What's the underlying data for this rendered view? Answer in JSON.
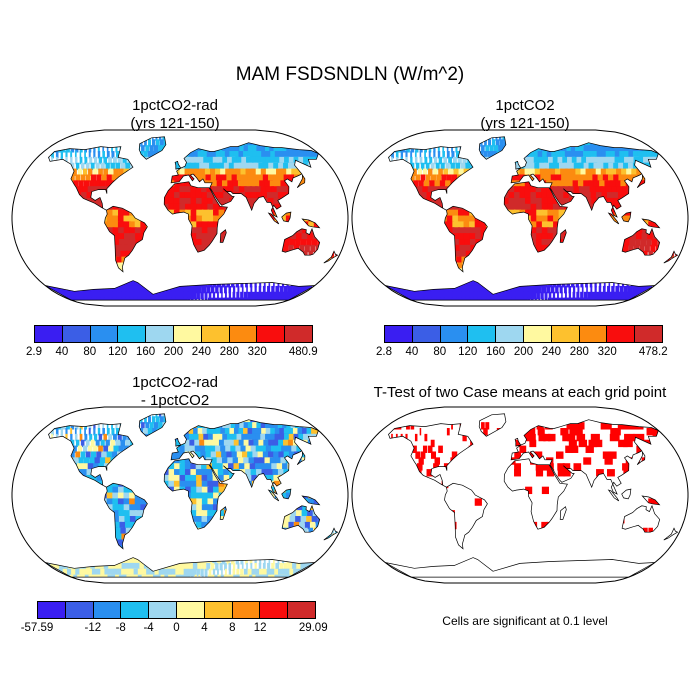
{
  "title": "MAM FSDSNDLN (W/m^2)",
  "panels": [
    {
      "title_line1": "1pctCO2-rad",
      "title_line2": "(yrs 121-150)"
    },
    {
      "title_line1": "1pctCO2",
      "title_line2": "(yrs 121-150)"
    },
    {
      "title_line1": "1pctCO2-rad",
      "title_line2": "- 1pctCO2"
    },
    {
      "title_line1": "T-Test of two Case means at each grid point",
      "title_line2": ""
    }
  ],
  "colorbars": {
    "abs_colors": [
      "#3a1ef2",
      "#3b5ee6",
      "#2a8ff0",
      "#1fbff0",
      "#9ed7f0",
      "#fff9a0",
      "#fdc12e",
      "#fc8b10",
      "#f90d0d",
      "#d02a2a"
    ],
    "cb1_labels": [
      "2.9",
      "40",
      "80",
      "120",
      "160",
      "200",
      "240",
      "280",
      "320",
      "480.9"
    ],
    "cb2_labels": [
      "2.8",
      "40",
      "80",
      "120",
      "160",
      "200",
      "240",
      "280",
      "320",
      "478.2"
    ],
    "diff_colors": [
      "#3a1ef2",
      "#3b5ee6",
      "#2a8ff0",
      "#1fbff0",
      "#9ed7f0",
      "#fff9a0",
      "#fdc12e",
      "#fc8b10",
      "#f90d0d",
      "#d02a2a"
    ],
    "cb3_labels": [
      "-57.59",
      "-12",
      "-8",
      "-4",
      "0",
      "4",
      "8",
      "12",
      "29.09"
    ]
  },
  "significance_note": "Cells are significant at 0.1 level",
  "significance_color": "#ff0000"
}
